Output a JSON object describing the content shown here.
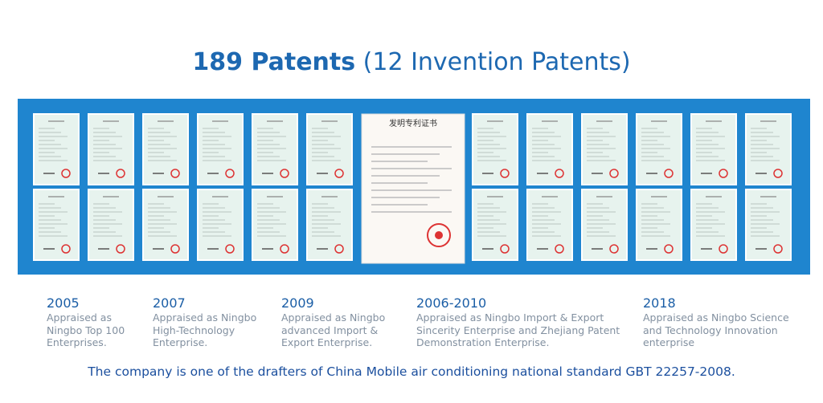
{
  "header": {
    "title_bold": "189 Patents",
    "title_rest": "(12 Invention Patents)"
  },
  "certificate": {
    "title": "发明专利证书"
  },
  "milestones": [
    {
      "year": "2005",
      "lines": [
        "Appraised as",
        "Ningbo Top 100",
        "Enterprises."
      ]
    },
    {
      "year": "2007",
      "lines": [
        "Appraised as Ningbo",
        "High-Technology",
        "Enterprise."
      ]
    },
    {
      "year": "2009",
      "lines": [
        "Appraised as Ningbo",
        "advanced Import &",
        "Export Enterprise."
      ]
    },
    {
      "year": "2006-2010",
      "lines": [
        "Appraised as  Ningbo Import & Export",
        "Sincerity Enterprise and Zhejiang Patent",
        "Demonstration Enterprise."
      ]
    },
    {
      "year": "2018",
      "lines": [
        "Appraised as Ningbo Science",
        "and Technology Innovation",
        "enterprise"
      ]
    }
  ],
  "footer": {
    "text": "The company is one of the drafters of China Mobile air conditioning national standard GBT 22257-2008."
  }
}
